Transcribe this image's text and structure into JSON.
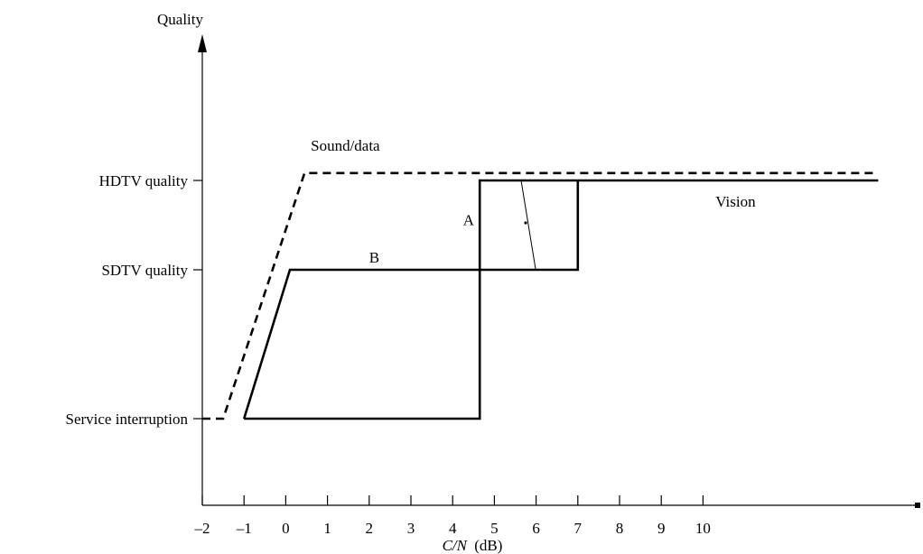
{
  "chart_data": {
    "type": "line",
    "title": "",
    "ylabel": "Quality",
    "xlabel_italic": "C/N",
    "xlabel_unit": "(dB)",
    "xlim": [
      -2,
      14.2
    ],
    "ylim": [
      -1.6,
      5.8
    ],
    "x_ticks": [
      -2,
      -1,
      0,
      1,
      2,
      3,
      4,
      5,
      6,
      7,
      8,
      9,
      10
    ],
    "x_tick_labels": [
      "–2",
      "–1",
      "0",
      "1",
      "2",
      "3",
      "4",
      "5",
      "6",
      "7",
      "8",
      "9",
      "10"
    ],
    "y_levels": [
      {
        "value": 0,
        "label": "Service interruption"
      },
      {
        "value": 2,
        "label": "SDTV quality"
      },
      {
        "value": 3.2,
        "label": "HDTV quality"
      }
    ],
    "series": [
      {
        "name": "Sound/data",
        "style": "dashed",
        "x": [
          -2,
          -1.5,
          0.45,
          14.2
        ],
        "y": [
          0,
          0,
          3.3,
          3.3
        ]
      },
      {
        "name": "Vision",
        "style": "solid",
        "x": [
          -2,
          -1,
          0.1,
          14.2
        ],
        "y": [
          0,
          0,
          3.2,
          3.2
        ],
        "draw_x": [
          7,
          14.2
        ],
        "draw_y": [
          3.2,
          3.2
        ]
      },
      {
        "name": "",
        "style": "solid",
        "x": [
          -1,
          0.1,
          7,
          7
        ],
        "y": [
          0,
          2,
          2,
          3.2
        ]
      },
      {
        "name": "",
        "style": "solid",
        "x": [
          -1,
          4.65,
          4.65,
          7
        ],
        "y": [
          0,
          0,
          3.2,
          3.2
        ]
      }
    ],
    "annotations": [
      {
        "text": "Sound/data",
        "x": 0.6,
        "y": 3.6
      },
      {
        "text": "Vision",
        "x": 10.3,
        "y": 2.85
      },
      {
        "text": "A",
        "x": 4.25,
        "y": 2.6
      },
      {
        "text": "B",
        "x": 2,
        "y": 2.1
      }
    ],
    "grid": false,
    "legend": "none"
  }
}
